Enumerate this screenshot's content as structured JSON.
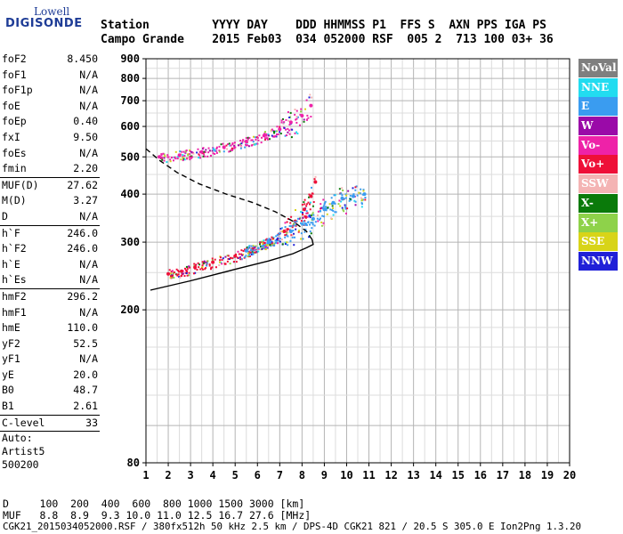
{
  "logo": {
    "line1": "Lowell",
    "line2": "DIGISONDE"
  },
  "header": {
    "line1": "Station         YYYY DAY    DDD HHMMSS P1  FFS S  AXN PPS IGA PS",
    "line2": "Campo Grande    2015 Feb03  034 052000 RSF  005 2  713 100 03+ 36"
  },
  "params": [
    {
      "label": "foF2",
      "value": "8.450"
    },
    {
      "label": "foF1",
      "value": "N/A"
    },
    {
      "label": "foF1p",
      "value": "N/A"
    },
    {
      "label": "foE",
      "value": "N/A"
    },
    {
      "label": "foEp",
      "value": "0.40"
    },
    {
      "label": "fxI",
      "value": "9.50"
    },
    {
      "label": "foEs",
      "value": "N/A"
    },
    {
      "label": "fmin",
      "value": "2.20"
    },
    {
      "sep": true
    },
    {
      "label": "MUF(D)",
      "value": "27.62"
    },
    {
      "label": "M(D)",
      "value": "3.27"
    },
    {
      "label": "D",
      "value": "N/A"
    },
    {
      "sep": true
    },
    {
      "label": "h`F",
      "value": "246.0"
    },
    {
      "label": "h`F2",
      "value": "246.0"
    },
    {
      "label": "h`E",
      "value": "N/A"
    },
    {
      "label": "h`Es",
      "value": "N/A"
    },
    {
      "sep": true
    },
    {
      "label": "hmF2",
      "value": "296.2"
    },
    {
      "label": "hmF1",
      "value": "N/A"
    },
    {
      "label": "hmE",
      "value": "110.0"
    },
    {
      "label": "yF2",
      "value": "52.5"
    },
    {
      "label": "yF1",
      "value": "N/A"
    },
    {
      "label": "yE",
      "value": "20.0"
    },
    {
      "label": "B0",
      "value": "48.7"
    },
    {
      "label": "B1",
      "value": "2.61"
    },
    {
      "sep": true
    },
    {
      "label": "C-level",
      "value": "33"
    },
    {
      "sep": true
    }
  ],
  "auto": [
    "Auto:",
    "Artist5",
    "500200"
  ],
  "legend": [
    {
      "label": "NoVal",
      "color": "#7f7f7f"
    },
    {
      "label": "NNE",
      "color": "#22dcf0"
    },
    {
      "label": "E",
      "color": "#3a9cf0"
    },
    {
      "label": "W",
      "color": "#9a0aa8"
    },
    {
      "label": "Vo-",
      "color": "#ee22a8"
    },
    {
      "label": "Vo+",
      "color": "#ee1038"
    },
    {
      "label": "SSW",
      "color": "#f4b4b4"
    },
    {
      "label": "X-",
      "color": "#0a7a0a"
    },
    {
      "label": "X+",
      "color": "#8ed24a"
    },
    {
      "label": "SSE",
      "color": "#d8d418"
    },
    {
      "label": "NNW",
      "color": "#2020d8"
    }
  ],
  "bottom": {
    "line1": "D     100  200  400  600  800 1000 1500 3000 [km]",
    "line2": "MUF   8.8  8.9  9.3 10.0 11.0 12.5 16.7 27.6 [MHz]",
    "line3": "CGK21_2015034052000.RSF / 380fx512h 50 kHz 2.5 km / DPS-4D CGK21 821 / 20.5 S 305.0 E Ion2Png 1.3.20"
  },
  "chart_data": {
    "type": "scatter",
    "title": "",
    "xlabel": "",
    "ylabel": "",
    "xlim": [
      1,
      20
    ],
    "ylim": [
      80,
      900
    ],
    "yscale": "log",
    "x_ticks": [
      1,
      2,
      3,
      4,
      5,
      6,
      7,
      8,
      9,
      10,
      11,
      12,
      13,
      14,
      15,
      16,
      17,
      18,
      19,
      20
    ],
    "y_ticks": [
      80,
      200,
      300,
      400,
      500,
      600,
      700,
      800,
      900
    ],
    "grid": true,
    "series": [
      {
        "name": "F2 o-trace",
        "color": "#ee1038",
        "x": [
          2.0,
          2.6,
          3.2,
          4.0,
          5.0,
          5.8,
          6.5,
          7.2,
          7.7,
          8.1,
          8.4,
          8.6
        ],
        "y": [
          248,
          252,
          258,
          266,
          276,
          288,
          302,
          320,
          340,
          365,
          395,
          430
        ]
      },
      {
        "name": "F2 x-trace",
        "color": "#3a9cf0",
        "x": [
          5.5,
          6.5,
          7.5,
          8.5,
          9.0,
          9.4,
          9.8,
          10.3,
          10.8
        ],
        "y": [
          285,
          300,
          320,
          345,
          365,
          380,
          390,
          395,
          400
        ]
      },
      {
        "name": "Multiple reflection",
        "color": "#ee22a8",
        "x": [
          1.6,
          2.5,
          3.5,
          4.5,
          5.5,
          6.3,
          7.0,
          7.5,
          8.0,
          8.4
        ],
        "y": [
          500,
          505,
          515,
          530,
          548,
          568,
          590,
          615,
          640,
          680
        ]
      },
      {
        "name": "Profile",
        "color": "#000000",
        "x": [
          1.2,
          3.0,
          5.0,
          6.5,
          7.6,
          8.2,
          8.5,
          8.45
        ],
        "y": [
          225,
          238,
          255,
          268,
          280,
          290,
          296,
          305
        ]
      },
      {
        "name": "Profile extrapolation",
        "color": "#000000",
        "x": [
          1.0,
          1.6,
          2.4,
          3.4,
          4.6,
          5.8,
          6.8,
          7.6,
          8.2,
          8.45
        ],
        "y": [
          525,
          490,
          455,
          425,
          400,
          380,
          360,
          340,
          320,
          305
        ]
      }
    ]
  }
}
